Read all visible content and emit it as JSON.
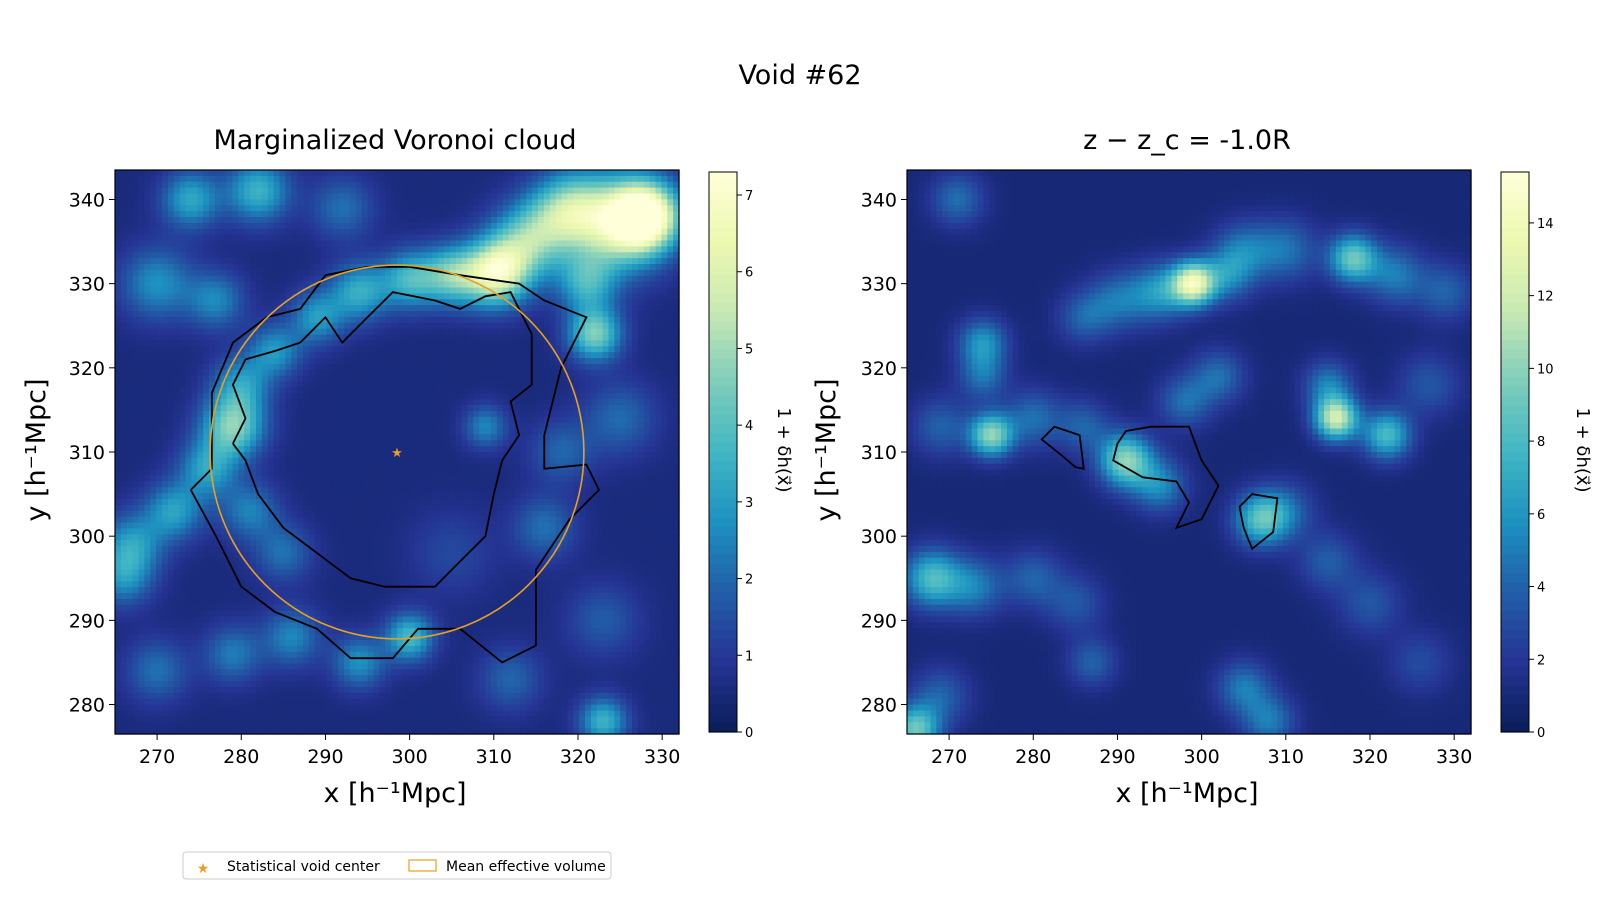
{
  "figure": {
    "suptitle": "Void #62"
  },
  "chart_data": [
    {
      "type": "heatmap",
      "title": "Marginalized Voronoi cloud",
      "xlabel": "x [h⁻¹Mpc]",
      "ylabel": "y [h⁻¹Mpc]",
      "xlim": [
        265,
        332
      ],
      "ylim": [
        276.5,
        343.5
      ],
      "xticks": [
        270,
        280,
        290,
        300,
        310,
        320,
        330
      ],
      "yticks": [
        280,
        290,
        300,
        310,
        320,
        330,
        340
      ],
      "colormap": "YlGnBu",
      "colorbar": {
        "label": "1 + δh(x⃗)",
        "range": [
          0,
          7.3
        ],
        "ticks": [
          0,
          1,
          2,
          3,
          4,
          5,
          6,
          7
        ]
      },
      "void_center": {
        "x": 298.5,
        "y": 310.0
      },
      "mean_effective_radius": 22.2,
      "blobs": [
        {
          "x": 328,
          "y": 338,
          "v": 7.0,
          "r": 2.8
        },
        {
          "x": 324,
          "y": 337,
          "v": 4.5,
          "r": 4
        },
        {
          "x": 319,
          "y": 339,
          "v": 3.2,
          "r": 3
        },
        {
          "x": 315,
          "y": 336,
          "v": 2.8,
          "r": 3
        },
        {
          "x": 312,
          "y": 333,
          "v": 2.6,
          "r": 3
        },
        {
          "x": 310,
          "y": 331,
          "v": 4.5,
          "r": 2.6
        },
        {
          "x": 305,
          "y": 331,
          "v": 3.5,
          "r": 2.4
        },
        {
          "x": 300,
          "y": 330.5,
          "v": 3.0,
          "r": 2.4
        },
        {
          "x": 294,
          "y": 329,
          "v": 2.8,
          "r": 2.4
        },
        {
          "x": 289,
          "y": 326,
          "v": 2.4,
          "r": 2.2
        },
        {
          "x": 284,
          "y": 322,
          "v": 2.3,
          "r": 2.2
        },
        {
          "x": 280,
          "y": 318,
          "v": 2.3,
          "r": 2.4
        },
        {
          "x": 279,
          "y": 313,
          "v": 4.0,
          "r": 2.6
        },
        {
          "x": 276,
          "y": 308,
          "v": 2.5,
          "r": 2.4
        },
        {
          "x": 272,
          "y": 303,
          "v": 2.5,
          "r": 2.4
        },
        {
          "x": 267,
          "y": 299,
          "v": 2.4,
          "r": 2.6
        },
        {
          "x": 266,
          "y": 295,
          "v": 2.0,
          "r": 2.4
        },
        {
          "x": 282,
          "y": 341,
          "v": 3.0,
          "r": 2.6
        },
        {
          "x": 274,
          "y": 340,
          "v": 2.7,
          "r": 2.4
        },
        {
          "x": 270,
          "y": 330,
          "v": 2.2,
          "r": 3
        },
        {
          "x": 277,
          "y": 328,
          "v": 2.0,
          "r": 2.4
        },
        {
          "x": 292,
          "y": 339,
          "v": 1.6,
          "r": 2.6
        },
        {
          "x": 322,
          "y": 324,
          "v": 4.0,
          "r": 2.2
        },
        {
          "x": 321,
          "y": 330,
          "v": 2.6,
          "r": 2.4
        },
        {
          "x": 325,
          "y": 314,
          "v": 1.5,
          "r": 3
        },
        {
          "x": 318,
          "y": 310,
          "v": 1.4,
          "r": 2.6
        },
        {
          "x": 309,
          "y": 313,
          "v": 2.0,
          "r": 1.8
        },
        {
          "x": 316,
          "y": 301,
          "v": 1.6,
          "r": 2.6
        },
        {
          "x": 300,
          "y": 288,
          "v": 3.2,
          "r": 2
        },
        {
          "x": 294,
          "y": 285,
          "v": 2.2,
          "r": 2.2
        },
        {
          "x": 286,
          "y": 288,
          "v": 2.0,
          "r": 2.4
        },
        {
          "x": 279,
          "y": 286,
          "v": 1.8,
          "r": 2.4
        },
        {
          "x": 270,
          "y": 284,
          "v": 1.6,
          "r": 2.6
        },
        {
          "x": 323,
          "y": 278,
          "v": 3.0,
          "r": 2
        },
        {
          "x": 312,
          "y": 283,
          "v": 1.4,
          "r": 2.6
        },
        {
          "x": 323,
          "y": 290,
          "v": 1.2,
          "r": 3
        },
        {
          "x": 305,
          "y": 298,
          "v": 0.8,
          "r": 3.5
        },
        {
          "x": 285,
          "y": 298,
          "v": 1.6,
          "r": 2.4
        },
        {
          "x": 281,
          "y": 303,
          "v": 1.9,
          "r": 2.4
        }
      ]
    },
    {
      "type": "heatmap",
      "title": "z − z_c = -1.0R",
      "xlabel": "x [h⁻¹Mpc]",
      "ylabel": "y [h⁻¹Mpc]",
      "xlim": [
        265,
        332
      ],
      "ylim": [
        276.5,
        343.5
      ],
      "xticks": [
        270,
        280,
        290,
        300,
        310,
        320,
        330
      ],
      "yticks": [
        280,
        290,
        300,
        310,
        320,
        330,
        340
      ],
      "colormap": "YlGnBu",
      "colorbar": {
        "label": "1 + δh(x⃗)",
        "range": [
          0,
          15.4
        ],
        "ticks": [
          0,
          2,
          4,
          6,
          8,
          10,
          12,
          14
        ]
      },
      "blobs": [
        {
          "x": 299,
          "y": 330,
          "v": 12.0,
          "r": 1.8
        },
        {
          "x": 295,
          "y": 329,
          "v": 5.0,
          "r": 2.4
        },
        {
          "x": 290,
          "y": 328,
          "v": 3.5,
          "r": 2.4
        },
        {
          "x": 286,
          "y": 326,
          "v": 3.0,
          "r": 2.2
        },
        {
          "x": 303,
          "y": 331,
          "v": 4.0,
          "r": 2.2
        },
        {
          "x": 305,
          "y": 334,
          "v": 3.5,
          "r": 2.4
        },
        {
          "x": 310,
          "y": 334,
          "v": 3.6,
          "r": 2.6
        },
        {
          "x": 318,
          "y": 333,
          "v": 8.0,
          "r": 2
        },
        {
          "x": 323,
          "y": 331,
          "v": 4.0,
          "r": 2.4
        },
        {
          "x": 329,
          "y": 329,
          "v": 3.0,
          "r": 2.4
        },
        {
          "x": 274,
          "y": 323,
          "v": 5.0,
          "r": 2
        },
        {
          "x": 274,
          "y": 319,
          "v": 3.5,
          "r": 2
        },
        {
          "x": 271,
          "y": 340,
          "v": 3.5,
          "r": 2.2
        },
        {
          "x": 275,
          "y": 312,
          "v": 9.0,
          "r": 1.8
        },
        {
          "x": 269,
          "y": 313,
          "v": 3.0,
          "r": 2.4
        },
        {
          "x": 280,
          "y": 314,
          "v": 3.5,
          "r": 2.4
        },
        {
          "x": 286,
          "y": 313,
          "v": 3.0,
          "r": 2.2
        },
        {
          "x": 291,
          "y": 309,
          "v": 9.0,
          "r": 2.2
        },
        {
          "x": 295,
          "y": 306,
          "v": 4.5,
          "r": 2.2
        },
        {
          "x": 298,
          "y": 316,
          "v": 3.5,
          "r": 2.2
        },
        {
          "x": 302,
          "y": 319,
          "v": 3.5,
          "r": 2.2
        },
        {
          "x": 307,
          "y": 302,
          "v": 7.0,
          "r": 2.2
        },
        {
          "x": 310,
          "y": 303,
          "v": 3.0,
          "r": 2.4
        },
        {
          "x": 316,
          "y": 314,
          "v": 11.0,
          "r": 1.8
        },
        {
          "x": 315,
          "y": 318,
          "v": 4.0,
          "r": 2
        },
        {
          "x": 322,
          "y": 312,
          "v": 7.0,
          "r": 2
        },
        {
          "x": 327,
          "y": 318,
          "v": 2.5,
          "r": 2.6
        },
        {
          "x": 268,
          "y": 295,
          "v": 7.0,
          "r": 2.4
        },
        {
          "x": 273,
          "y": 294,
          "v": 4.0,
          "r": 2.4
        },
        {
          "x": 280,
          "y": 295,
          "v": 3.0,
          "r": 2.4
        },
        {
          "x": 285,
          "y": 292,
          "v": 2.5,
          "r": 2.4
        },
        {
          "x": 287,
          "y": 285,
          "v": 3.0,
          "r": 2
        },
        {
          "x": 266,
          "y": 277,
          "v": 8.0,
          "r": 2
        },
        {
          "x": 269,
          "y": 281,
          "v": 3.0,
          "r": 2.4
        },
        {
          "x": 305,
          "y": 282,
          "v": 4.0,
          "r": 2.2
        },
        {
          "x": 308,
          "y": 278,
          "v": 4.0,
          "r": 2.2
        },
        {
          "x": 320,
          "y": 292,
          "v": 2.5,
          "r": 2.6
        },
        {
          "x": 326,
          "y": 285,
          "v": 2.0,
          "r": 2.6
        },
        {
          "x": 315,
          "y": 297,
          "v": 2.8,
          "r": 2.4
        }
      ]
    }
  ],
  "legend": {
    "items": [
      {
        "label": "Statistical void center",
        "marker": "star",
        "color": "#e8a020"
      },
      {
        "label": "Mean effective volume",
        "marker": "rect-outline",
        "color": "#e8a020"
      }
    ]
  },
  "colors": {
    "contour": "#000000",
    "void_circle": "#e8a020",
    "void_center": "#e8a020"
  }
}
